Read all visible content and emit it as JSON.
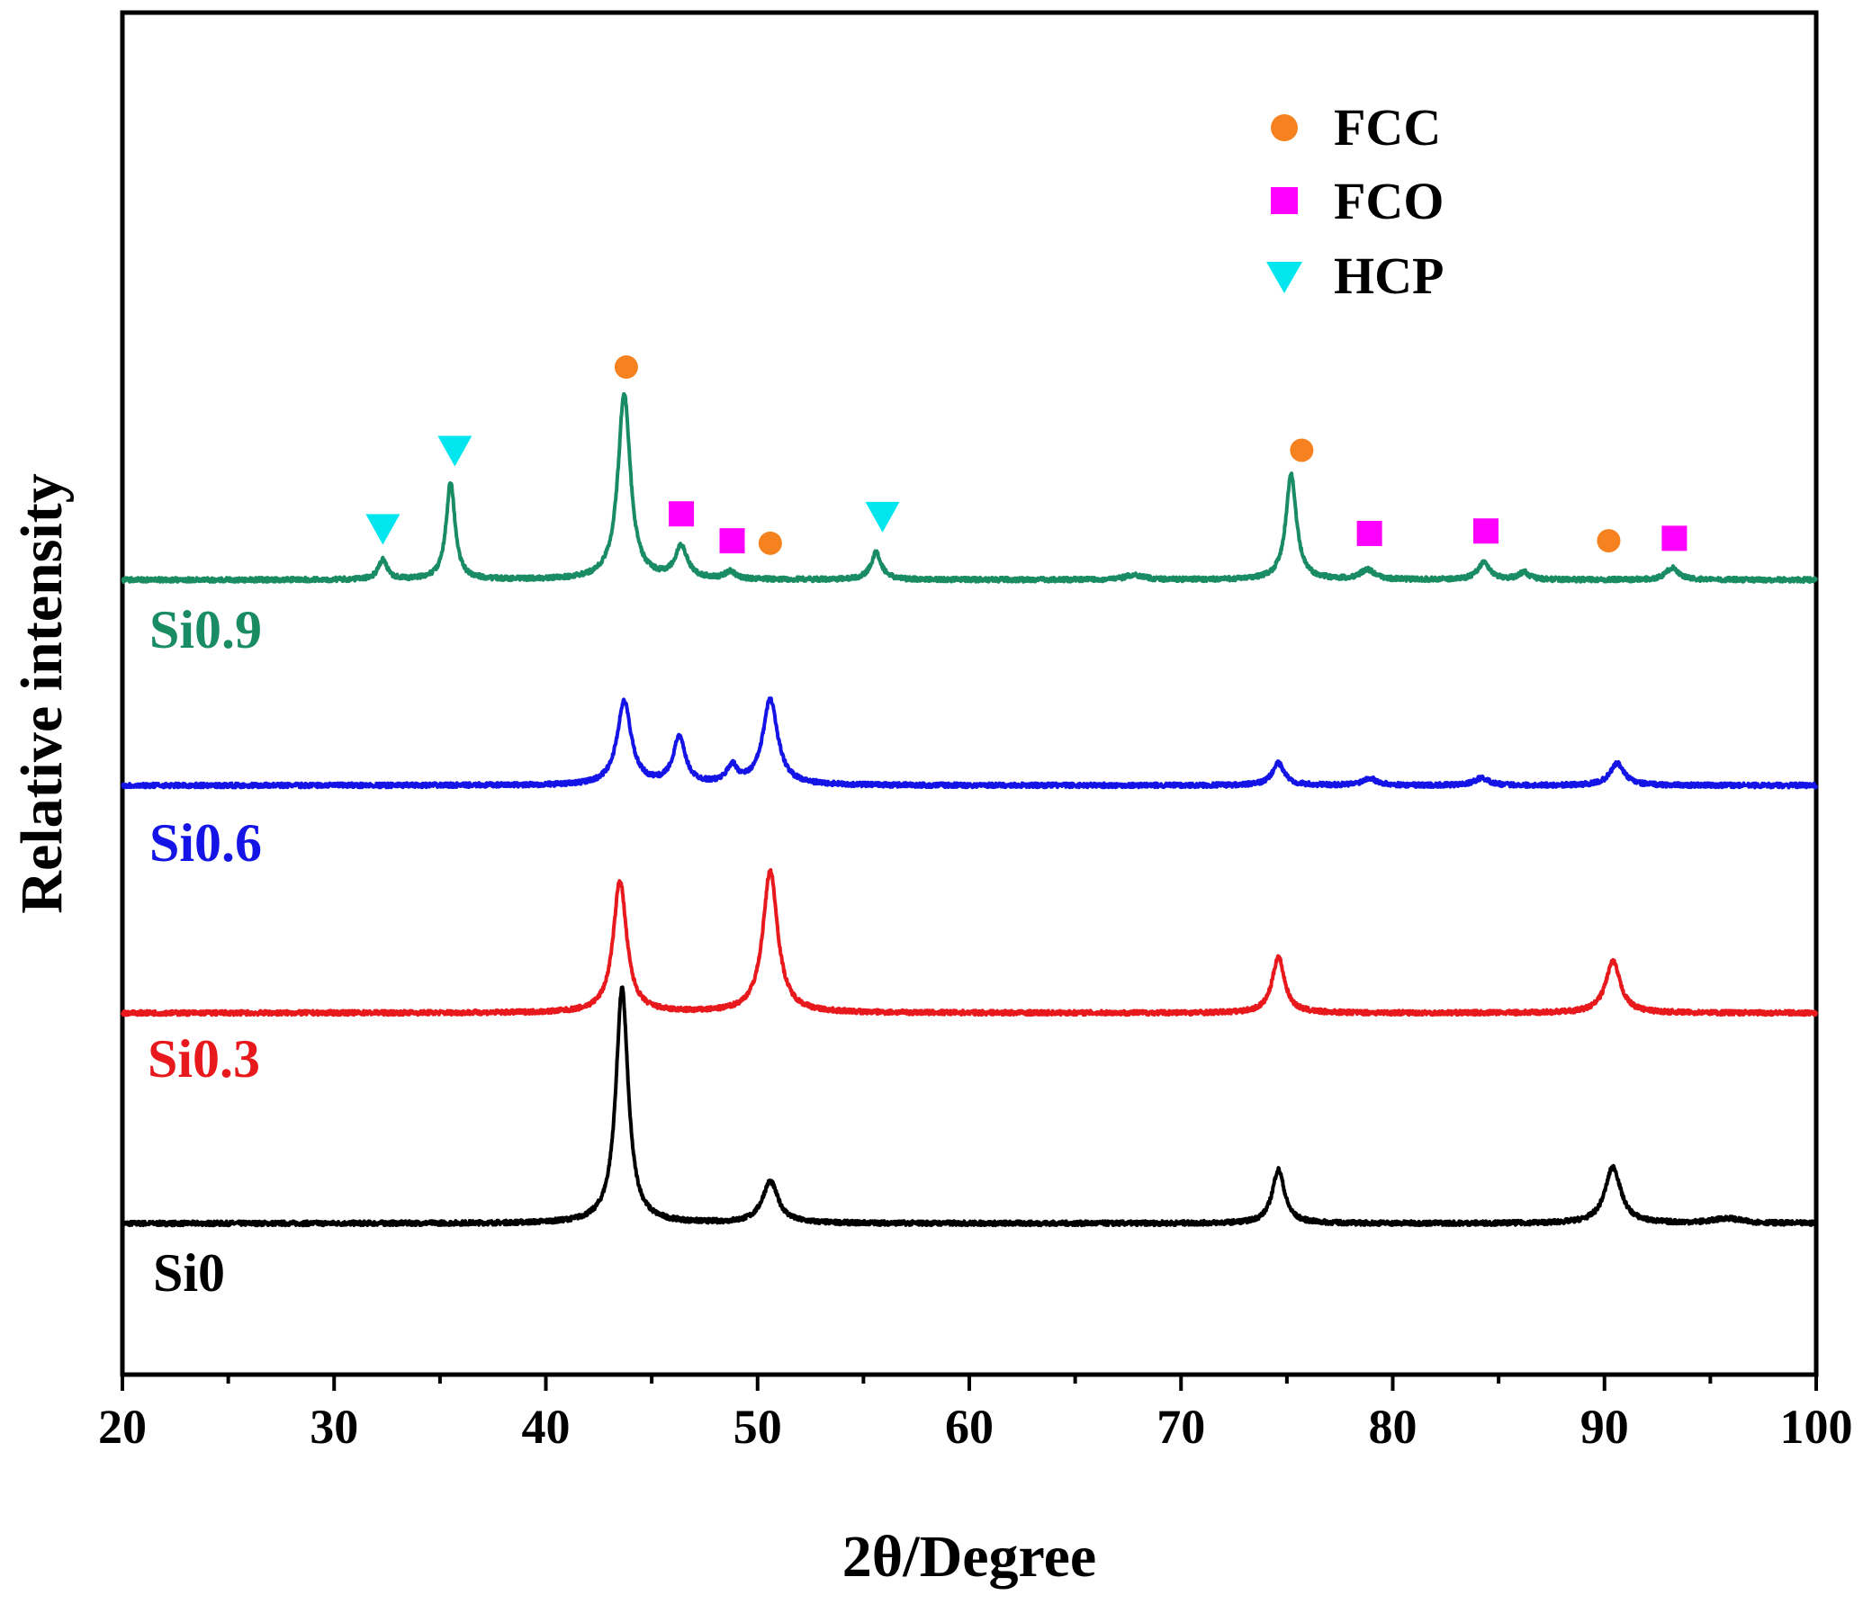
{
  "chart_data": {
    "type": "line",
    "title": "",
    "xlabel": "2θ/Degree",
    "ylabel": "Relative intensity",
    "xlim": [
      20,
      100
    ],
    "xticks": [
      "20",
      "30",
      "40",
      "50",
      "60",
      "70",
      "80",
      "90",
      "100"
    ],
    "yticks": [],
    "grid": false,
    "legend": {
      "placement": "top-right",
      "entries": [
        {
          "label": "FCC",
          "marker": "circle",
          "color": "#f5821f"
        },
        {
          "label": "FCO",
          "marker": "square",
          "color": "#ff00ff"
        },
        {
          "label": "HCP",
          "marker": "triangle-down",
          "color": "#00e5ee"
        }
      ]
    },
    "series": [
      {
        "name": "Si0",
        "color": "#000000",
        "offset": 0.0,
        "peaks": [
          {
            "x": 43.6,
            "height": 0.96,
            "width": 0.35
          },
          {
            "x": 50.6,
            "height": 0.17,
            "width": 0.45
          },
          {
            "x": 74.6,
            "height": 0.22,
            "width": 0.35
          },
          {
            "x": 90.4,
            "height": 0.23,
            "width": 0.45
          },
          {
            "x": 95.8,
            "height": 0.02,
            "width": 0.8
          }
        ]
      },
      {
        "name": "Si0.3",
        "color": "#e8191c",
        "offset": 0.86,
        "peaks": [
          {
            "x": 43.5,
            "height": 0.54,
            "width": 0.38
          },
          {
            "x": 50.6,
            "height": 0.58,
            "width": 0.42
          },
          {
            "x": 74.6,
            "height": 0.23,
            "width": 0.35
          },
          {
            "x": 90.4,
            "height": 0.21,
            "width": 0.42
          }
        ]
      },
      {
        "name": "Si0.6",
        "color": "#1414e6",
        "offset": 1.79,
        "peaks": [
          {
            "x": 43.7,
            "height": 0.34,
            "width": 0.4
          },
          {
            "x": 46.3,
            "height": 0.19,
            "width": 0.35
          },
          {
            "x": 48.8,
            "height": 0.07,
            "width": 0.3
          },
          {
            "x": 50.6,
            "height": 0.35,
            "width": 0.42
          },
          {
            "x": 74.6,
            "height": 0.09,
            "width": 0.35
          },
          {
            "x": 78.9,
            "height": 0.03,
            "width": 0.4
          },
          {
            "x": 84.2,
            "height": 0.03,
            "width": 0.4
          },
          {
            "x": 90.6,
            "height": 0.09,
            "width": 0.4
          }
        ]
      },
      {
        "name": "Si0.9",
        "color": "#1a8c64",
        "offset": 2.63,
        "peaks": [
          {
            "x": 32.3,
            "height": 0.08,
            "width": 0.25
          },
          {
            "x": 35.5,
            "height": 0.4,
            "width": 0.25
          },
          {
            "x": 43.7,
            "height": 0.76,
            "width": 0.35
          },
          {
            "x": 46.4,
            "height": 0.13,
            "width": 0.35
          },
          {
            "x": 48.7,
            "height": 0.03,
            "width": 0.3
          },
          {
            "x": 55.6,
            "height": 0.11,
            "width": 0.3
          },
          {
            "x": 67.8,
            "height": 0.02,
            "width": 0.5
          },
          {
            "x": 75.2,
            "height": 0.43,
            "width": 0.3
          },
          {
            "x": 78.8,
            "height": 0.04,
            "width": 0.4
          },
          {
            "x": 84.3,
            "height": 0.07,
            "width": 0.35
          },
          {
            "x": 86.2,
            "height": 0.03,
            "width": 0.3
          },
          {
            "x": 93.2,
            "height": 0.05,
            "width": 0.35
          }
        ]
      }
    ],
    "phase_markers": [
      {
        "phase": "HCP",
        "x": 32.3,
        "y": 2.84
      },
      {
        "phase": "HCP",
        "x": 35.7,
        "y": 3.16
      },
      {
        "phase": "FCC",
        "x": 43.8,
        "y": 3.5
      },
      {
        "phase": "FCO",
        "x": 46.4,
        "y": 2.9
      },
      {
        "phase": "FCO",
        "x": 48.8,
        "y": 2.79
      },
      {
        "phase": "FCC",
        "x": 50.6,
        "y": 2.78
      },
      {
        "phase": "HCP",
        "x": 55.9,
        "y": 2.89
      },
      {
        "phase": "FCC",
        "x": 75.7,
        "y": 3.16
      },
      {
        "phase": "FCO",
        "x": 78.9,
        "y": 2.82
      },
      {
        "phase": "FCO",
        "x": 84.4,
        "y": 2.83
      },
      {
        "phase": "FCC",
        "x": 90.2,
        "y": 2.79
      },
      {
        "phase": "FCO",
        "x": 93.3,
        "y": 2.8
      }
    ]
  }
}
